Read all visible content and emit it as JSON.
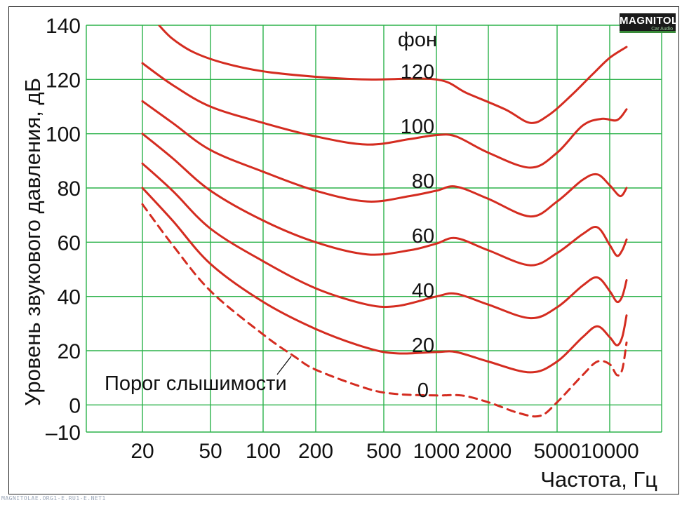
{
  "logo": {
    "text": "MAGNITOLA",
    "subtext": "Car Audio"
  },
  "watermark": "MAGNITOLAE.ORG1-E.RU1-E.NET1",
  "colors": {
    "grid": "#2bb24a",
    "curve": "#d42c20",
    "text": "#111111",
    "frame": "#222222"
  },
  "chart_data": {
    "type": "line",
    "xlabel": "Частота, Гц",
    "ylabel": "Уровень звукового давления, дБ",
    "x_scale": "log",
    "xlim": [
      20,
      12500
    ],
    "ylim": [
      -10,
      140
    ],
    "x_ticks": [
      {
        "value": 20,
        "label": "20"
      },
      {
        "value": 50,
        "label": "50"
      },
      {
        "value": 100,
        "label": "100"
      },
      {
        "value": 200,
        "label": "200"
      },
      {
        "value": 500,
        "label": "500"
      },
      {
        "value": 1000,
        "label": "1000"
      },
      {
        "value": 2000,
        "label": "2000"
      },
      {
        "value": 5000,
        "label": "5000"
      },
      {
        "value": 10000,
        "label": "10000"
      }
    ],
    "y_ticks": [
      {
        "value": 140,
        "label": "140"
      },
      {
        "value": 120,
        "label": "120"
      },
      {
        "value": 100,
        "label": "100"
      },
      {
        "value": 80,
        "label": "80"
      },
      {
        "value": 60,
        "label": "60"
      },
      {
        "value": 40,
        "label": "40"
      },
      {
        "value": 20,
        "label": "20"
      },
      {
        "value": 0,
        "label": "0"
      },
      {
        "value": -10,
        "label": "–10"
      }
    ],
    "grid": true,
    "curve_labels": [
      {
        "text": "фон",
        "x": 930,
        "y": 133
      },
      {
        "text": "120",
        "x": 930,
        "y": 123
      },
      {
        "text": "100",
        "x": 930,
        "y": 103
      },
      {
        "text": "80",
        "x": 930,
        "y": 83
      },
      {
        "text": "60",
        "x": 930,
        "y": 63
      },
      {
        "text": "40",
        "x": 930,
        "y": 43
      },
      {
        "text": "20",
        "x": 930,
        "y": 23
      },
      {
        "text": "0",
        "x": 930,
        "y": 6
      }
    ],
    "annotation": {
      "text": "Порог слышимости",
      "arrow_from": [
        160,
        23
      ],
      "arrow_to": [
        185,
        18
      ]
    },
    "series": [
      {
        "phon": 120,
        "dashed": false,
        "segments": [
          [
            [
              25,
              140
            ],
            [
              30,
              135
            ],
            [
              40,
              130
            ],
            [
              60,
              126
            ],
            [
              100,
              123
            ],
            [
              200,
              121
            ],
            [
              400,
              120
            ],
            [
              1000,
              120
            ],
            [
              1500,
              115
            ],
            [
              2500,
              109
            ],
            [
              3500,
              104
            ],
            [
              4500,
              107
            ],
            [
              6000,
              114
            ],
            [
              8000,
              122
            ],
            [
              10000,
              128
            ],
            [
              12500,
              132
            ]
          ]
        ]
      },
      {
        "phon": 100,
        "dashed": false,
        "segments": [
          [
            [
              20,
              126
            ],
            [
              30,
              118
            ],
            [
              50,
              110
            ],
            [
              100,
              104
            ],
            [
              200,
              99
            ],
            [
              400,
              96
            ],
            [
              700,
              98
            ],
            [
              1000,
              99.5
            ],
            [
              1300,
              99
            ],
            [
              2000,
              93
            ],
            [
              3500,
              87.5
            ],
            [
              5000,
              93
            ],
            [
              7000,
              103
            ],
            [
              9000,
              105.5
            ],
            [
              11000,
              105
            ],
            [
              12500,
              109
            ]
          ]
        ]
      },
      {
        "phon": 80,
        "dashed": false,
        "segments": [
          [
            [
              20,
              112
            ],
            [
              30,
              104
            ],
            [
              50,
              94
            ],
            [
              100,
              86
            ],
            [
              200,
              79
            ],
            [
              400,
              75
            ],
            [
              700,
              77
            ],
            [
              1000,
              79
            ],
            [
              1300,
              80.5
            ],
            [
              2000,
              76
            ],
            [
              3500,
              69.5
            ],
            [
              5000,
              75
            ],
            [
              7000,
              83
            ],
            [
              8500,
              85
            ],
            [
              10000,
              81
            ],
            [
              11500,
              77
            ],
            [
              12500,
              80
            ]
          ]
        ]
      },
      {
        "phon": 60,
        "dashed": false,
        "segments": [
          [
            [
              20,
              100
            ],
            [
              30,
              91
            ],
            [
              50,
              79
            ],
            [
              100,
              68
            ],
            [
              200,
              60
            ],
            [
              400,
              55.5
            ],
            [
              700,
              57
            ],
            [
              1000,
              59.5
            ],
            [
              1300,
              61.5
            ],
            [
              2000,
              57
            ],
            [
              3500,
              51.5
            ],
            [
              5000,
              56
            ],
            [
              7000,
              63
            ],
            [
              8500,
              65.5
            ],
            [
              10000,
              59
            ],
            [
              11000,
              55
            ],
            [
              11800,
              57
            ],
            [
              12500,
              61
            ]
          ]
        ]
      },
      {
        "phon": 40,
        "dashed": false,
        "segments": [
          [
            [
              20,
              89
            ],
            [
              30,
              79
            ],
            [
              50,
              65
            ],
            [
              100,
              53
            ],
            [
              200,
              43
            ],
            [
              400,
              37
            ],
            [
              600,
              36.5
            ],
            [
              1000,
              40
            ],
            [
              1300,
              41
            ],
            [
              2000,
              37
            ],
            [
              3500,
              32
            ],
            [
              5000,
              36
            ],
            [
              7000,
              44
            ],
            [
              8500,
              47
            ],
            [
              10000,
              42
            ],
            [
              11000,
              38
            ],
            [
              11800,
              40
            ],
            [
              12500,
              46
            ]
          ]
        ]
      },
      {
        "phon": 20,
        "dashed": false,
        "segments": [
          [
            [
              20,
              80
            ],
            [
              30,
              68
            ],
            [
              50,
              52
            ],
            [
              100,
              38
            ],
            [
              200,
              28
            ],
            [
              400,
              21
            ],
            [
              600,
              19
            ],
            [
              1000,
              19.5
            ],
            [
              1300,
              19.5
            ],
            [
              2000,
              16
            ],
            [
              3500,
              12
            ],
            [
              5000,
              16
            ],
            [
              7000,
              25
            ],
            [
              8500,
              29
            ],
            [
              10000,
              25
            ],
            [
              11000,
              22
            ],
            [
              11800,
              25
            ],
            [
              12500,
              33
            ]
          ]
        ]
      },
      {
        "phon": 0,
        "dashed": true,
        "segments": [
          [
            [
              20,
              74
            ],
            [
              30,
              59
            ],
            [
              50,
              42
            ],
            [
              100,
              26
            ],
            [
              150,
              18
            ],
            [
              200,
              13
            ],
            [
              400,
              6
            ],
            [
              600,
              4
            ],
            [
              1000,
              3.5
            ],
            [
              1400,
              3.5
            ],
            [
              2000,
              1
            ],
            [
              3000,
              -3
            ],
            [
              4000,
              -4
            ],
            [
              5000,
              1
            ],
            [
              7000,
              11
            ],
            [
              8500,
              16
            ],
            [
              10000,
              15
            ],
            [
              11000,
              11
            ],
            [
              11800,
              13
            ],
            [
              12500,
              23
            ]
          ]
        ]
      }
    ]
  }
}
